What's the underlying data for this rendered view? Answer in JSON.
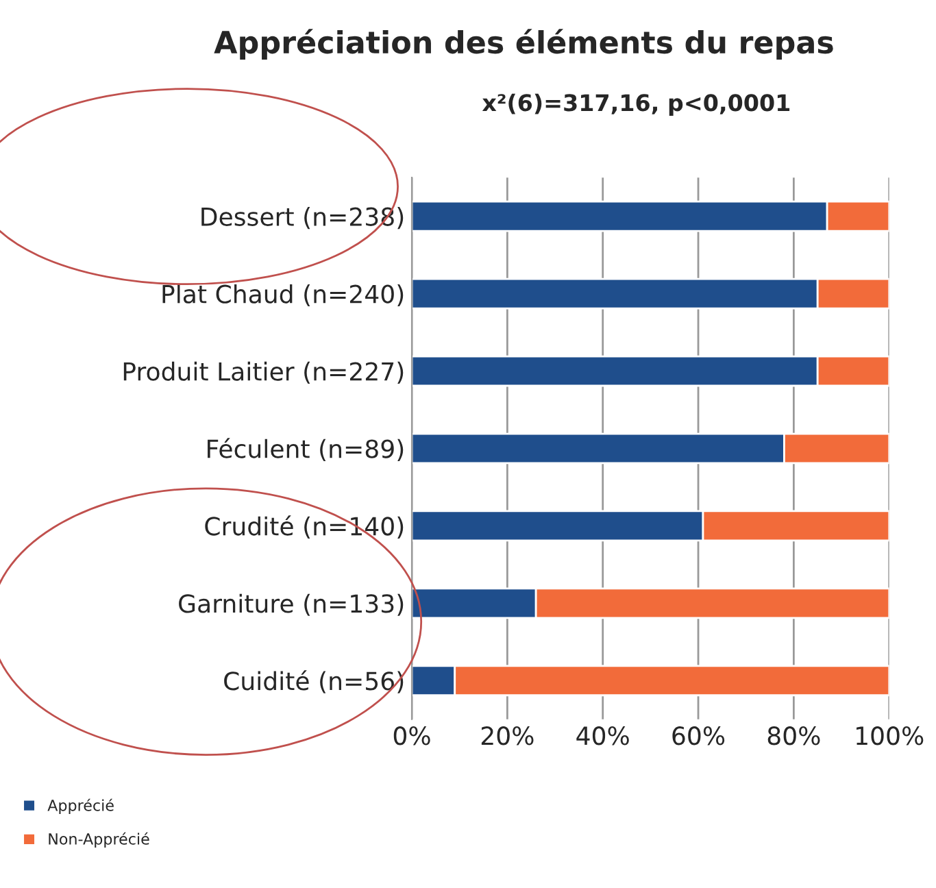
{
  "chart_data": {
    "type": "bar",
    "orientation": "horizontal",
    "stacked": true,
    "title": "Appréciation des éléments du repas",
    "subtitle": "x²(6)=317,16, p<0,0001",
    "categories": [
      "Dessert (n=238)",
      "Plat Chaud (n=240)",
      "Produit Laitier (n=227)",
      "Féculent (n=89)",
      "Crudité (n=140)",
      "Garniture (n=133)",
      "Cuidité (n=56)"
    ],
    "series": [
      {
        "name": "Apprécié",
        "color": "#1f4e8c",
        "values": [
          87,
          85,
          85,
          78,
          61,
          26,
          9
        ]
      },
      {
        "name": "Non-Apprécié",
        "color": "#f26b3a",
        "values": [
          13,
          15,
          15,
          22,
          39,
          74,
          91
        ]
      }
    ],
    "xlim": [
      0,
      100
    ],
    "xticks": [
      {
        "value": 0,
        "label": "0%"
      },
      {
        "value": 20,
        "label": "20%"
      },
      {
        "value": 40,
        "label": "40%"
      },
      {
        "value": 60,
        "label": "60%"
      },
      {
        "value": 80,
        "label": "80%"
      },
      {
        "value": 100,
        "label": "100%"
      }
    ],
    "grid": "x",
    "legend": "bottom left"
  }
}
